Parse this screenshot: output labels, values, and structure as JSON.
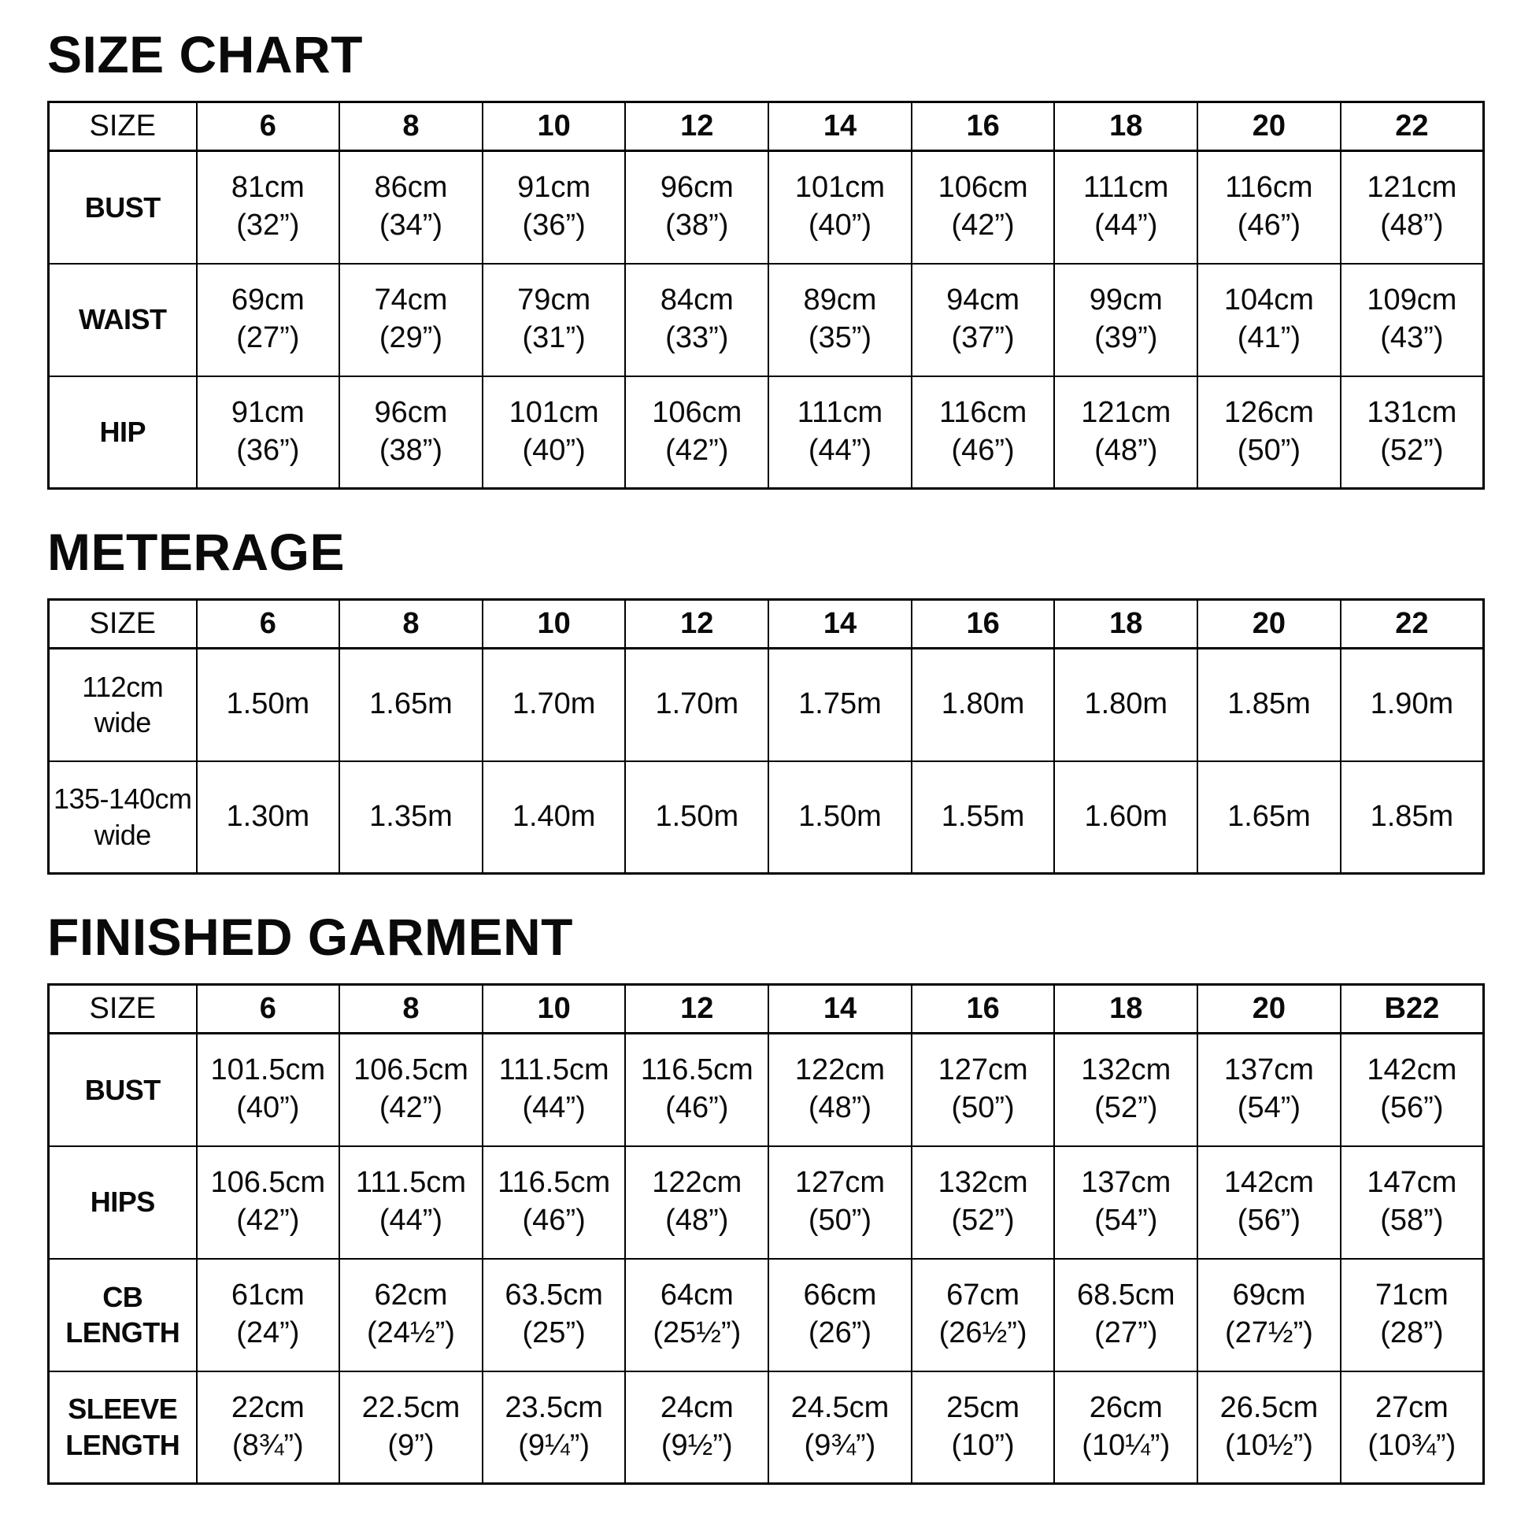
{
  "colors": {
    "background": "#ffffff",
    "text": "#000000",
    "table_border": "#000000"
  },
  "sections": [
    {
      "title": "SIZE CHART",
      "columns": [
        "SIZE",
        "6",
        "8",
        "10",
        "12",
        "14",
        "16",
        "18",
        "20",
        "22"
      ],
      "rows": [
        {
          "label": "BUST",
          "cells": [
            "81cm\n(32”)",
            "86cm\n(34”)",
            "91cm\n(36”)",
            "96cm\n(38”)",
            "101cm\n(40”)",
            "106cm\n(42”)",
            "111cm\n(44”)",
            "116cm\n(46”)",
            "121cm\n(48”)"
          ]
        },
        {
          "label": "WAIST",
          "cells": [
            "69cm\n(27”)",
            "74cm\n(29”)",
            "79cm\n(31”)",
            "84cm\n(33”)",
            "89cm\n(35”)",
            "94cm\n(37”)",
            "99cm\n(39”)",
            "104cm\n(41”)",
            "109cm\n(43”)"
          ]
        },
        {
          "label": "HIP",
          "cells": [
            "91cm\n(36”)",
            "96cm\n(38”)",
            "101cm\n(40”)",
            "106cm\n(42”)",
            "111cm\n(44”)",
            "116cm\n(46”)",
            "121cm\n(48”)",
            "126cm\n(50”)",
            "131cm\n(52”)"
          ]
        }
      ]
    },
    {
      "title": "METERAGE",
      "columns": [
        "SIZE",
        "6",
        "8",
        "10",
        "12",
        "14",
        "16",
        "18",
        "20",
        "22"
      ],
      "rows": [
        {
          "label": "112cm\nwide",
          "cells": [
            "1.50m",
            "1.65m",
            "1.70m",
            "1.70m",
            "1.75m",
            "1.80m",
            "1.80m",
            "1.85m",
            "1.90m"
          ]
        },
        {
          "label": "135-140cm\nwide",
          "cells": [
            "1.30m",
            "1.35m",
            "1.40m",
            "1.50m",
            "1.50m",
            "1.55m",
            "1.60m",
            "1.65m",
            "1.85m"
          ]
        }
      ]
    },
    {
      "title": "FINISHED GARMENT",
      "columns": [
        "SIZE",
        "6",
        "8",
        "10",
        "12",
        "14",
        "16",
        "18",
        "20",
        "B22"
      ],
      "rows": [
        {
          "label": "BUST",
          "cells": [
            "101.5cm\n(40”)",
            "106.5cm\n(42”)",
            "111.5cm\n(44”)",
            "116.5cm\n(46”)",
            "122cm\n(48”)",
            "127cm\n(50”)",
            "132cm\n(52”)",
            "137cm\n(54”)",
            "142cm\n(56”)"
          ]
        },
        {
          "label": "HIPS",
          "cells": [
            "106.5cm\n(42”)",
            "111.5cm\n(44”)",
            "116.5cm\n(46”)",
            "122cm\n(48”)",
            "127cm\n(50”)",
            "132cm\n(52”)",
            "137cm\n(54”)",
            "142cm\n(56”)",
            "147cm\n(58”)"
          ]
        },
        {
          "label": "CB\nLENGTH",
          "cells": [
            "61cm\n(24”)",
            "62cm\n(24½”)",
            "63.5cm\n(25”)",
            "64cm\n(25½”)",
            "66cm\n(26”)",
            "67cm\n(26½”)",
            "68.5cm\n(27”)",
            "69cm\n(27½”)",
            "71cm\n(28”)"
          ]
        },
        {
          "label": "SLEEVE\nLENGTH",
          "cells": [
            "22cm\n(8¾”)",
            "22.5cm\n(9”)",
            "23.5cm\n(9¼”)",
            "24cm\n(9½”)",
            "24.5cm\n(9¾”)",
            "25cm\n(10”)",
            "26cm\n(10¼”)",
            "26.5cm\n(10½”)",
            "27cm\n(10¾”)"
          ]
        }
      ]
    }
  ]
}
